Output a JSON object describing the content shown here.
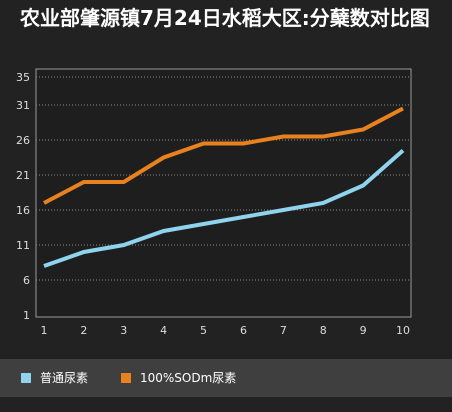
{
  "chart_data": {
    "type": "line",
    "title": "农业部肇源镇7月24日水稻大区:分蘖数对比图",
    "xlabel": "",
    "ylabel": "",
    "x": [
      1,
      2,
      3,
      4,
      5,
      6,
      7,
      8,
      9,
      10
    ],
    "yticks": [
      1,
      6,
      11,
      16,
      21,
      26,
      31,
      35
    ],
    "ylim": [
      1,
      35
    ],
    "grid": true,
    "legend_position": "bottom",
    "series": [
      {
        "name": "普通尿素",
        "color": "#8fd3ef",
        "values": [
          8,
          10,
          11,
          13,
          14,
          15,
          16,
          17,
          19.5,
          24.5
        ]
      },
      {
        "name": "100%SODm尿素",
        "color": "#e8821e",
        "values": [
          17,
          20,
          20,
          23.5,
          25.5,
          25.5,
          26.5,
          26.5,
          27.5,
          30.5
        ]
      }
    ]
  }
}
